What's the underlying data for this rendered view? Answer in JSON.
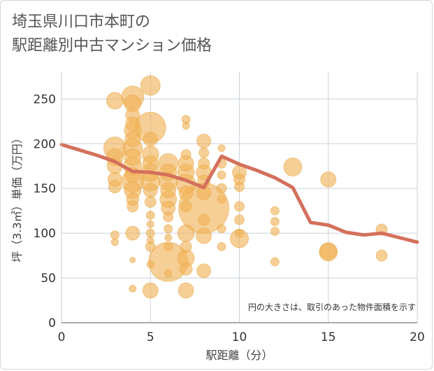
{
  "chart_data": {
    "type": "scatter",
    "title": [
      "埼玉県川口市本町の",
      "駅距離別中古マンション価格"
    ],
    "xlabel": "駅距離（分）",
    "ylabel": "坪（3.3㎡）単価（万円）",
    "xlim": [
      0,
      20
    ],
    "ylim": [
      0,
      280
    ],
    "xticks": [
      0,
      5,
      10,
      15,
      20
    ],
    "yticks": [
      0,
      50,
      100,
      150,
      200,
      250
    ],
    "grid": true,
    "note": "円の大きさは、取引のあった物件面積を示す",
    "colors": {
      "bubble": "#f0b256",
      "bubble_edge": "#e8a33c",
      "line": "#d4705c",
      "grid": "#c9d2dc"
    },
    "series": [
      {
        "kind": "bubble",
        "points": [
          {
            "x": 3,
            "y": 248,
            "s": 12
          },
          {
            "x": 3,
            "y": 195,
            "s": 16
          },
          {
            "x": 3,
            "y": 185,
            "s": 12
          },
          {
            "x": 3,
            "y": 175,
            "s": 11
          },
          {
            "x": 3,
            "y": 160,
            "s": 10
          },
          {
            "x": 3,
            "y": 152,
            "s": 9
          },
          {
            "x": 3,
            "y": 98,
            "s": 6
          },
          {
            "x": 3,
            "y": 90,
            "s": 5
          },
          {
            "x": 4,
            "y": 252,
            "s": 16
          },
          {
            "x": 4,
            "y": 245,
            "s": 12
          },
          {
            "x": 4,
            "y": 232,
            "s": 10
          },
          {
            "x": 4,
            "y": 222,
            "s": 10
          },
          {
            "x": 4,
            "y": 215,
            "s": 12
          },
          {
            "x": 4,
            "y": 205,
            "s": 11
          },
          {
            "x": 4,
            "y": 195,
            "s": 14
          },
          {
            "x": 4,
            "y": 185,
            "s": 12
          },
          {
            "x": 4,
            "y": 175,
            "s": 13
          },
          {
            "x": 4,
            "y": 165,
            "s": 11
          },
          {
            "x": 4,
            "y": 158,
            "s": 16
          },
          {
            "x": 4,
            "y": 148,
            "s": 12
          },
          {
            "x": 4,
            "y": 138,
            "s": 9
          },
          {
            "x": 4,
            "y": 130,
            "s": 8
          },
          {
            "x": 4,
            "y": 100,
            "s": 10
          },
          {
            "x": 4,
            "y": 70,
            "s": 4
          },
          {
            "x": 4,
            "y": 38,
            "s": 5
          },
          {
            "x": 5,
            "y": 265,
            "s": 14
          },
          {
            "x": 5,
            "y": 218,
            "s": 22
          },
          {
            "x": 5,
            "y": 205,
            "s": 10
          },
          {
            "x": 5,
            "y": 188,
            "s": 12
          },
          {
            "x": 5,
            "y": 178,
            "s": 11
          },
          {
            "x": 5,
            "y": 168,
            "s": 13
          },
          {
            "x": 5,
            "y": 158,
            "s": 14
          },
          {
            "x": 5,
            "y": 148,
            "s": 10
          },
          {
            "x": 5,
            "y": 135,
            "s": 8
          },
          {
            "x": 5,
            "y": 120,
            "s": 6
          },
          {
            "x": 5,
            "y": 110,
            "s": 5
          },
          {
            "x": 5,
            "y": 100,
            "s": 6
          },
          {
            "x": 5,
            "y": 92,
            "s": 5
          },
          {
            "x": 5,
            "y": 85,
            "s": 7
          },
          {
            "x": 5,
            "y": 65,
            "s": 5
          },
          {
            "x": 5,
            "y": 36,
            "s": 11
          },
          {
            "x": 6,
            "y": 178,
            "s": 14
          },
          {
            "x": 6,
            "y": 168,
            "s": 12
          },
          {
            "x": 6,
            "y": 158,
            "s": 13
          },
          {
            "x": 6,
            "y": 148,
            "s": 11
          },
          {
            "x": 6,
            "y": 138,
            "s": 12
          },
          {
            "x": 6,
            "y": 128,
            "s": 10
          },
          {
            "x": 6,
            "y": 118,
            "s": 7
          },
          {
            "x": 6,
            "y": 105,
            "s": 6
          },
          {
            "x": 6,
            "y": 95,
            "s": 5
          },
          {
            "x": 6,
            "y": 85,
            "s": 6
          },
          {
            "x": 6,
            "y": 68,
            "s": 28
          },
          {
            "x": 6,
            "y": 55,
            "s": 5
          },
          {
            "x": 7,
            "y": 227,
            "s": 6
          },
          {
            "x": 7,
            "y": 220,
            "s": 5
          },
          {
            "x": 7,
            "y": 188,
            "s": 7
          },
          {
            "x": 7,
            "y": 178,
            "s": 11
          },
          {
            "x": 7,
            "y": 168,
            "s": 12
          },
          {
            "x": 7,
            "y": 155,
            "s": 14
          },
          {
            "x": 7,
            "y": 145,
            "s": 10
          },
          {
            "x": 7,
            "y": 130,
            "s": 8
          },
          {
            "x": 7,
            "y": 100,
            "s": 12
          },
          {
            "x": 7,
            "y": 85,
            "s": 8
          },
          {
            "x": 7,
            "y": 72,
            "s": 12
          },
          {
            "x": 7,
            "y": 60,
            "s": 9
          },
          {
            "x": 7,
            "y": 36,
            "s": 11
          },
          {
            "x": 8,
            "y": 203,
            "s": 10
          },
          {
            "x": 8,
            "y": 190,
            "s": 7
          },
          {
            "x": 8,
            "y": 178,
            "s": 8
          },
          {
            "x": 8,
            "y": 168,
            "s": 11
          },
          {
            "x": 8,
            "y": 158,
            "s": 9
          },
          {
            "x": 8,
            "y": 145,
            "s": 10
          },
          {
            "x": 8,
            "y": 128,
            "s": 36
          },
          {
            "x": 8,
            "y": 115,
            "s": 8
          },
          {
            "x": 8,
            "y": 97,
            "s": 11
          },
          {
            "x": 8,
            "y": 58,
            "s": 10
          },
          {
            "x": 9,
            "y": 195,
            "s": 5
          },
          {
            "x": 9,
            "y": 178,
            "s": 7
          },
          {
            "x": 9,
            "y": 165,
            "s": 6
          },
          {
            "x": 9,
            "y": 150,
            "s": 7
          },
          {
            "x": 9,
            "y": 138,
            "s": 6
          },
          {
            "x": 9,
            "y": 105,
            "s": 6
          },
          {
            "x": 9,
            "y": 85,
            "s": 6
          },
          {
            "x": 10,
            "y": 168,
            "s": 10
          },
          {
            "x": 10,
            "y": 160,
            "s": 8
          },
          {
            "x": 10,
            "y": 152,
            "s": 7
          },
          {
            "x": 10,
            "y": 130,
            "s": 7
          },
          {
            "x": 10,
            "y": 115,
            "s": 7
          },
          {
            "x": 10,
            "y": 100,
            "s": 6
          },
          {
            "x": 10,
            "y": 94,
            "s": 13
          },
          {
            "x": 12,
            "y": 125,
            "s": 6
          },
          {
            "x": 12,
            "y": 113,
            "s": 6
          },
          {
            "x": 12,
            "y": 102,
            "s": 6
          },
          {
            "x": 12,
            "y": 68,
            "s": 6
          },
          {
            "x": 13,
            "y": 174,
            "s": 13
          },
          {
            "x": 15,
            "y": 160,
            "s": 11
          },
          {
            "x": 15,
            "y": 80,
            "s": 12
          },
          {
            "x": 15,
            "y": 79,
            "s": 13
          },
          {
            "x": 18,
            "y": 104,
            "s": 8
          },
          {
            "x": 18,
            "y": 75,
            "s": 8
          }
        ]
      },
      {
        "kind": "line",
        "x": [
          0,
          1,
          2,
          3,
          4,
          5,
          6,
          7,
          8,
          9,
          10,
          11,
          12,
          13,
          14,
          15,
          16,
          17,
          18,
          19,
          20
        ],
        "y": [
          199,
          193,
          187,
          180,
          169,
          168,
          165,
          159,
          151,
          186,
          177,
          170,
          162,
          151,
          112,
          109,
          101,
          98,
          100,
          95,
          90
        ]
      }
    ]
  }
}
